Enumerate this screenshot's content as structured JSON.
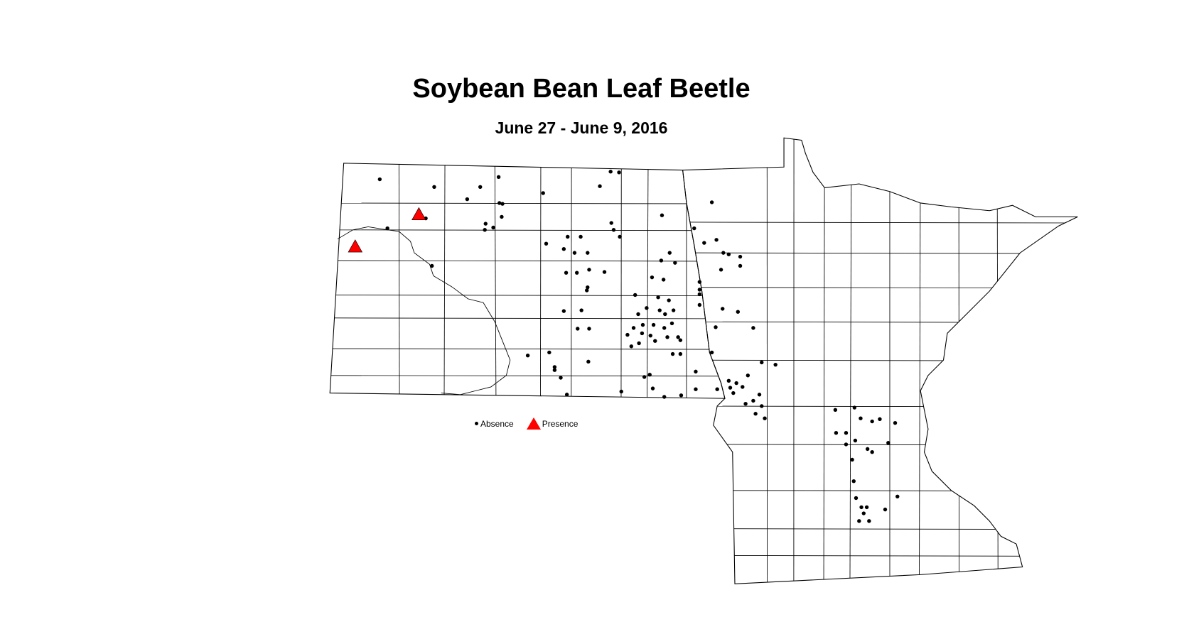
{
  "title": "Soybean Bean Leaf Beetle",
  "subtitle": "June 27 - June 9, 2016",
  "legend": {
    "absence_label": "Absence",
    "presence_label": "Presence"
  },
  "colors": {
    "absence": "#000000",
    "presence": "#ff0000",
    "boundary": "#000000",
    "background": "#ffffff"
  },
  "icons": {
    "absence": "black-dot",
    "presence": "red-triangle"
  }
}
